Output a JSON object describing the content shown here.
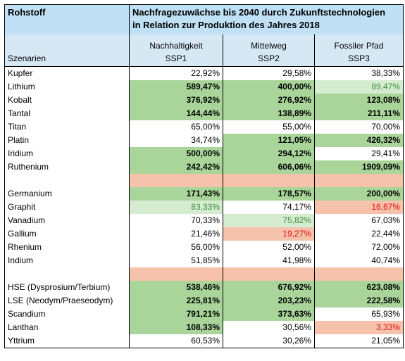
{
  "header": {
    "rohstoff_label": "Rohstoff",
    "title_line1": "Nachfragezuwächse bis 2040 durch Zukunftstechnologien",
    "title_line2": "in Relation zur Produktion des Jahres 2018",
    "scenarios_label": "Szenarien",
    "col1_name": "Nachhaltigkeit",
    "col1_code": "SSP1",
    "col2_name": "Mittelweg",
    "col2_code": "SSP2",
    "col3_name": "Fossiler Pfad",
    "col3_code": "SSP3"
  },
  "colors": {
    "header_blue": "#bfe0f5",
    "strong_green": "#a9d59a",
    "light_green": "#d6ecd0",
    "orange": "#f6c2ab",
    "red_text": "#e01010",
    "green_text": "#3d8c3d"
  },
  "rows": [
    {
      "name": "Kupfer",
      "v1": "22,92%",
      "v2": "29,58%",
      "v3": "38,33%"
    },
    {
      "name": "Lithium",
      "v1": "589,47%",
      "v2": "400,00%",
      "v3": "89,47%"
    },
    {
      "name": "Kobalt",
      "v1": "376,92%",
      "v2": "276,92%",
      "v3": "123,08%"
    },
    {
      "name": "Tantal",
      "v1": "144,44%",
      "v2": "138,89%",
      "v3": "211,11%"
    },
    {
      "name": "Titan",
      "v1": "65,00%",
      "v2": "55,00%",
      "v3": "70,00%"
    },
    {
      "name": "Platin",
      "v1": "34,74%",
      "v2": "121,05%",
      "v3": "426,32%"
    },
    {
      "name": "Iridium",
      "v1": "500,00%",
      "v2": "294,12%",
      "v3": "29,41%"
    },
    {
      "name": "Ruthenium",
      "v1": "242,42%",
      "v2": "606,06%",
      "v3": "1909,09%"
    },
    {
      "name": "Germanium",
      "v1": "171,43%",
      "v2": "178,57%",
      "v3": "200,00%"
    },
    {
      "name": "Graphit",
      "v1": "83,33%",
      "v2": "74,17%",
      "v3": "16,67%"
    },
    {
      "name": "Vanadium",
      "v1": "70,33%",
      "v2": "75,82%",
      "v3": "67,03%"
    },
    {
      "name": "Gallium",
      "v1": "21,46%",
      "v2": "19,27%",
      "v3": "22,44%"
    },
    {
      "name": "Rhenium",
      "v1": "56,00%",
      "v2": "52,00%",
      "v3": "72,00%"
    },
    {
      "name": "Indium",
      "v1": "51,85%",
      "v2": "41,98%",
      "v3": "40,74%"
    },
    {
      "name": "HSE (Dysprosium/Terbium)",
      "v1": "538,46%",
      "v2": "676,92%",
      "v3": "623,08%"
    },
    {
      "name": "LSE (Neodym/Praeseodym)",
      "v1": "225,81%",
      "v2": "203,23%",
      "v3": "222,58%"
    },
    {
      "name": "Scandium",
      "v1": "791,21%",
      "v2": "373,63%",
      "v3": "65,93%"
    },
    {
      "name": "Lanthan",
      "v1": "108,33%",
      "v2": "30,56%",
      "v3": "3,33%"
    },
    {
      "name": "Yttrium",
      "v1": "60,53%",
      "v2": "30,26%",
      "v3": "21,05%"
    }
  ]
}
